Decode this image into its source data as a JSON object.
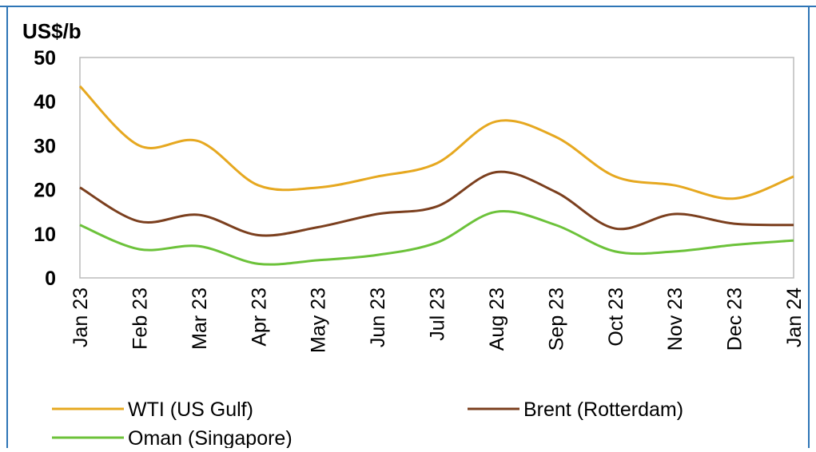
{
  "chart_data": {
    "type": "line",
    "y_label": "US$/b",
    "categories": [
      "Jan 23",
      "Feb 23",
      "Mar 23",
      "Apr 23",
      "May 23",
      "Jun 23",
      "Jul 23",
      "Aug 23",
      "Sep 23",
      "Oct 23",
      "Nov 23",
      "Dec 23",
      "Jan 24"
    ],
    "series": [
      {
        "name": "WTI (US Gulf)",
        "color": "#e6a820",
        "values": [
          43.5,
          30,
          31,
          21,
          20.5,
          23,
          26,
          35.5,
          32,
          23,
          21,
          18,
          23
        ]
      },
      {
        "name": "Brent (Rotterdam)",
        "color": "#7b3f1e",
        "values": [
          20.5,
          12.8,
          14.3,
          9.7,
          11.5,
          14.5,
          16.2,
          24,
          19.5,
          11.2,
          14.5,
          12.3,
          12
        ]
      },
      {
        "name": "Oman (Singapore)",
        "color": "#6cc23a",
        "values": [
          12,
          6.5,
          7.2,
          3.2,
          4,
          5.2,
          8,
          15,
          12,
          6,
          6,
          7.5,
          8.5
        ]
      }
    ],
    "ylim": [
      0,
      50
    ],
    "yticks": [
      0,
      10,
      20,
      30,
      40,
      50
    ],
    "grid": false
  }
}
